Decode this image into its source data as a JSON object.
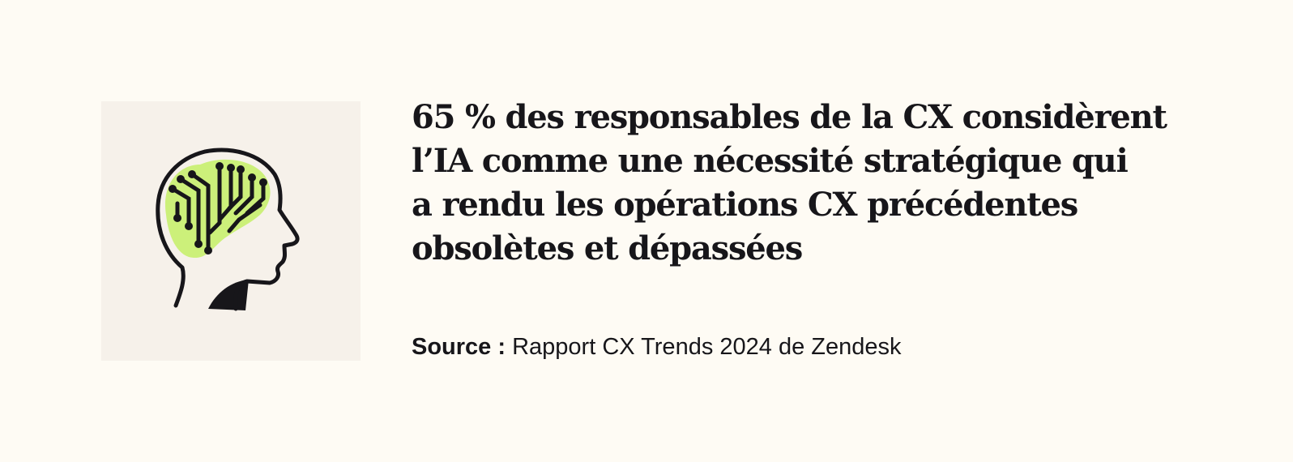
{
  "headline": {
    "lines": [
      "65 % des responsables de la CX considèrent",
      "l’IA comme une nécessité stratégique qui",
      "a rendu les opérations CX précédentes",
      "obsolètes et dépassées"
    ]
  },
  "source": {
    "label": "Source :",
    "text": "Rapport CX Trends 2024 de Zendesk"
  },
  "illustration": {
    "icon": "ai-brain-head-icon",
    "colors": {
      "card_background": "#f6f1ea",
      "brain_fill": "#ccf07a",
      "outline": "#17161a"
    }
  },
  "colors": {
    "page_background": "#fefbf4",
    "text": "#17161a"
  }
}
